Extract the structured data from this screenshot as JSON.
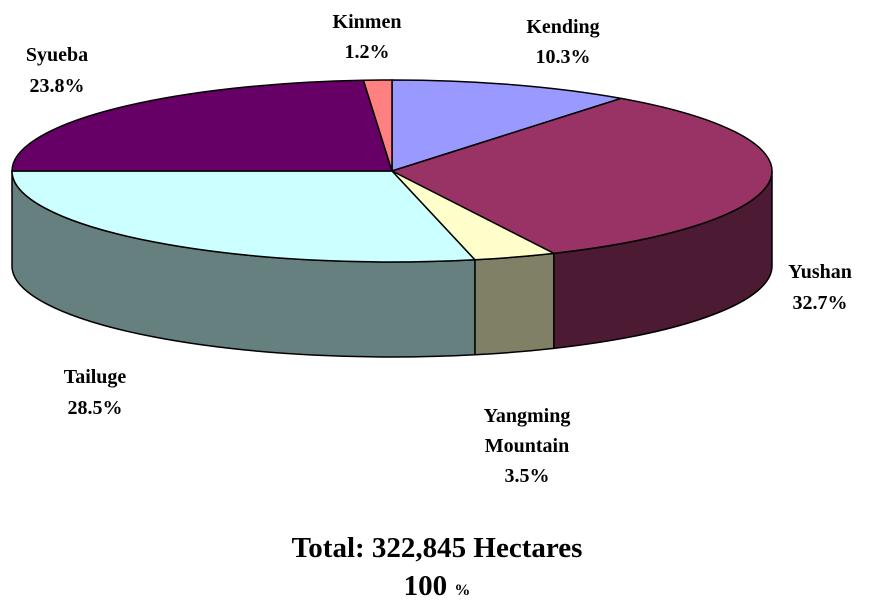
{
  "chart_data": {
    "type": "pie3d",
    "categories": [
      "Kending",
      "Yushan",
      "Yangming Mountain",
      "Tailuge",
      "Syueba",
      "Kinmen"
    ],
    "values": [
      10.3,
      32.7,
      3.5,
      28.5,
      23.8,
      1.2
    ],
    "value_labels": [
      "10.3%",
      "32.7%",
      "3.5%",
      "28.5%",
      "23.8%",
      "1.2%"
    ],
    "colors": [
      "#9999ff",
      "#993366",
      "#ffffcc",
      "#ccffff",
      "#660066",
      "#ff8080"
    ],
    "side_colors": [
      "#5c5c99",
      "#4d1a33",
      "#808066",
      "#668080",
      "#330033",
      "#994d4d"
    ],
    "total": "Total: 322,845 Hectares",
    "total_percent": "100",
    "total_unit": "%"
  }
}
